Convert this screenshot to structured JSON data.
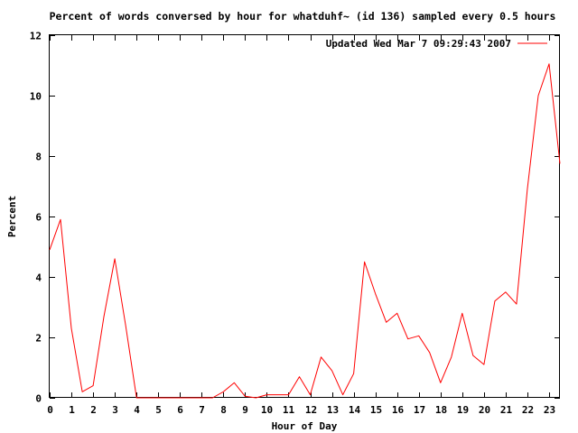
{
  "chart_data": {
    "type": "line",
    "title": "Percent of words conversed by hour for whatduhf~ (id 136) sampled every 0.5 hours",
    "xlabel": "Hour of Day",
    "ylabel": "Percent",
    "legend_position": "top-right",
    "xlim": [
      0,
      23.5
    ],
    "ylim": [
      0,
      12
    ],
    "x_ticks": [
      0,
      1,
      2,
      3,
      4,
      5,
      6,
      7,
      8,
      9,
      10,
      11,
      12,
      13,
      14,
      15,
      16,
      17,
      18,
      19,
      20,
      21,
      22,
      23
    ],
    "y_ticks": [
      0,
      2,
      4,
      6,
      8,
      10,
      12
    ],
    "x_tick_labels": [
      "0",
      "1",
      "2",
      "3",
      "4",
      "5",
      "6",
      "7",
      "8",
      "9",
      "10",
      "11",
      "12",
      "13",
      "14",
      "15",
      "16",
      "17",
      "18",
      "19",
      "20",
      "21",
      "22",
      "23"
    ],
    "y_tick_labels": [
      "0",
      "2",
      "4",
      "6",
      "8",
      "10",
      "12"
    ],
    "series": [
      {
        "name": "Updated Wed Mar  7 09:29:43 2007",
        "color": "#ff0000",
        "x": [
          0,
          0.5,
          1,
          1.5,
          2,
          2.5,
          3,
          3.5,
          4,
          4.5,
          5,
          5.5,
          6,
          6.5,
          7,
          7.5,
          8,
          8.5,
          9,
          9.5,
          10,
          10.5,
          11,
          11.5,
          12,
          12.5,
          13,
          13.5,
          14,
          14.5,
          15,
          15.5,
          16,
          16.5,
          17,
          17.5,
          18,
          18.5,
          19,
          19.5,
          20,
          20.5,
          21,
          21.5,
          22,
          22.5,
          23,
          23.5
        ],
        "values": [
          4.9,
          5.9,
          2.3,
          0.2,
          0.4,
          2.7,
          4.6,
          2.4,
          0,
          0,
          0,
          0,
          0,
          0,
          0,
          0,
          0.2,
          0.5,
          0.05,
          0,
          0.1,
          0.1,
          0.1,
          0.7,
          0.1,
          1.35,
          0.9,
          0.1,
          0.8,
          4.5,
          3.45,
          2.5,
          2.8,
          1.95,
          2.05,
          1.5,
          0.5,
          1.35,
          2.8,
          1.4,
          1.1,
          3.2,
          3.5,
          3.1,
          6.9,
          10.0,
          11.05,
          7.75
        ]
      }
    ]
  }
}
